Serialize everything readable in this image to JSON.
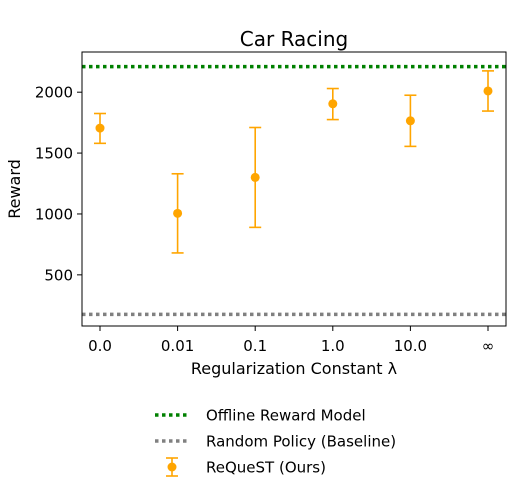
{
  "chart_data": {
    "type": "scatter",
    "title": "Car Racing",
    "xlabel": "Regularization Constant λ",
    "ylabel": "Reward",
    "categories": [
      "0.0",
      "0.01",
      "0.1",
      "1.0",
      "10.0",
      "∞"
    ],
    "ylim": [
      80,
      2330
    ],
    "yticks": [
      500,
      1000,
      1500,
      2000
    ],
    "grid": false,
    "legend_position": "bottom-center",
    "reference_lines": [
      {
        "name": "Offline Reward Model",
        "y": 2210,
        "color": "#008000",
        "style": "dotted"
      },
      {
        "name": "Random Policy (Baseline)",
        "y": 175,
        "color": "#808080",
        "style": "dotted"
      }
    ],
    "series": [
      {
        "name": "ReQueST (Ours)",
        "color": "#ffa500",
        "values": [
          1705,
          1005,
          1300,
          1905,
          1765,
          2010
        ],
        "error_low": [
          1580,
          680,
          890,
          1775,
          1555,
          1845
        ],
        "error_high": [
          1825,
          1330,
          1710,
          2030,
          1975,
          2175
        ]
      }
    ]
  }
}
